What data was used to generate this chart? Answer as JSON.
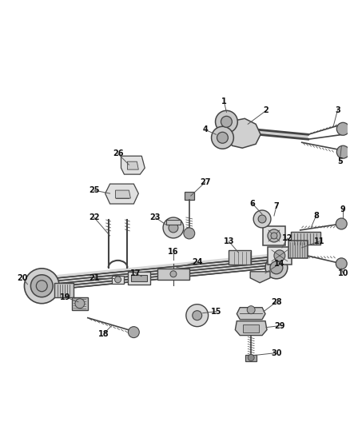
{
  "bg_color": "#ffffff",
  "line_color": "#444444",
  "label_color": "#111111",
  "gray_dark": "#888888",
  "gray_med": "#aaaaaa",
  "gray_light": "#cccccc",
  "gray_xlight": "#e0e0e0",
  "figsize": [
    4.38,
    5.33
  ],
  "dpi": 100,
  "label_fontsize": 7.0,
  "leader_lw": 0.7,
  "leader_color": "#555555"
}
